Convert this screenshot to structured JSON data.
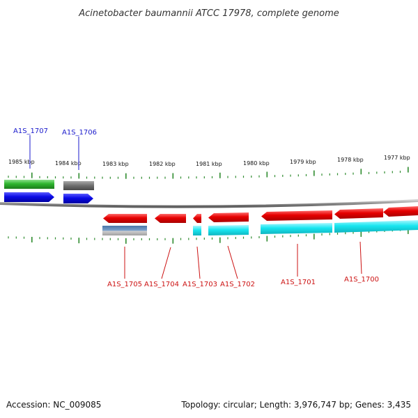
{
  "title": "Acinetobacter baumannii ATCC 17978, complete genome",
  "colors": {
    "backbone": "#8a8a8a",
    "tick": "#2e8b2e",
    "forward_label": "#1a1acc",
    "reverse_label": "#cc1111",
    "gene_red": "#e60000",
    "gene_blue": "#0a0ae6",
    "gene_green": "#2fb52f",
    "gene_gray": "#6e6e6e",
    "gene_cyan": "#19e6f0",
    "gene_steel": "#5a86b8"
  },
  "scale": {
    "labels": [
      "1985 kbp",
      "1984 kbp",
      "1983 kbp",
      "1982 kbp",
      "1981 kbp",
      "1980 kbp",
      "1979 kbp",
      "1978 kbp",
      "1977 kbp"
    ]
  },
  "genes_forward": [
    {
      "label": "A1S_1707",
      "color": "#1a1acc"
    },
    {
      "label": "A1S_1706",
      "color": "#1a1acc"
    }
  ],
  "genes_reverse": [
    {
      "label": "A1S_1705",
      "color": "#cc1111"
    },
    {
      "label": "A1S_1704",
      "color": "#cc1111"
    },
    {
      "label": "A1S_1703",
      "color": "#cc1111"
    },
    {
      "label": "A1S_1702",
      "color": "#cc1111"
    },
    {
      "label": "A1S_1701",
      "color": "#cc1111"
    },
    {
      "label": "A1S_1700",
      "color": "#cc1111"
    }
  ],
  "footer": {
    "accession": "Accession: NC_009085",
    "info": "Topology: circular; Length: 3,976,747 bp; Genes: 3,435"
  }
}
